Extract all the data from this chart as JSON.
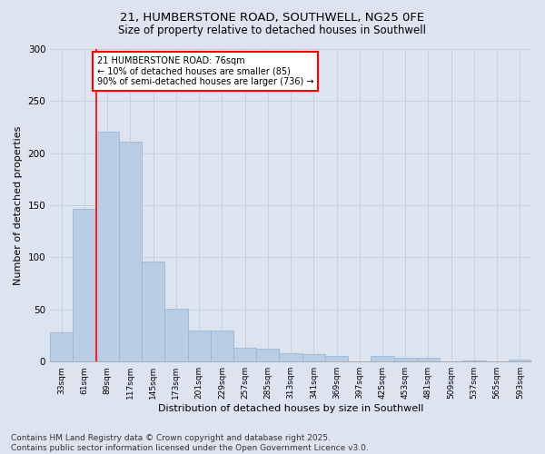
{
  "title_line1": "21, HUMBERSTONE ROAD, SOUTHWELL, NG25 0FE",
  "title_line2": "Size of property relative to detached houses in Southwell",
  "xlabel": "Distribution of detached houses by size in Southwell",
  "ylabel": "Number of detached properties",
  "categories": [
    "33sqm",
    "61sqm",
    "89sqm",
    "117sqm",
    "145sqm",
    "173sqm",
    "201sqm",
    "229sqm",
    "257sqm",
    "285sqm",
    "313sqm",
    "341sqm",
    "369sqm",
    "397sqm",
    "425sqm",
    "453sqm",
    "481sqm",
    "509sqm",
    "537sqm",
    "565sqm",
    "593sqm"
  ],
  "values": [
    28,
    147,
    221,
    211,
    96,
    51,
    30,
    30,
    13,
    12,
    8,
    7,
    5,
    0,
    5,
    4,
    4,
    0,
    1,
    0,
    2
  ],
  "bar_color": "#b8cce4",
  "bar_edge_color": "#8db4d8",
  "bar_linewidth": 0.5,
  "vline_x": 1.5,
  "vline_color": "red",
  "vline_linewidth": 1.2,
  "annotation_text": "21 HUMBERSTONE ROAD: 76sqm\n← 10% of detached houses are smaller (85)\n90% of semi-detached houses are larger (736) →",
  "annotation_box_color": "white",
  "annotation_box_edgecolor": "red",
  "annotation_fontsize": 7,
  "ylim": [
    0,
    300
  ],
  "yticks": [
    0,
    50,
    100,
    150,
    200,
    250,
    300
  ],
  "grid_color": "#c8d0dc",
  "bg_color": "#dde4f0",
  "footer_line1": "Contains HM Land Registry data © Crown copyright and database right 2025.",
  "footer_line2": "Contains public sector information licensed under the Open Government Licence v3.0.",
  "footer_fontsize": 6.5
}
